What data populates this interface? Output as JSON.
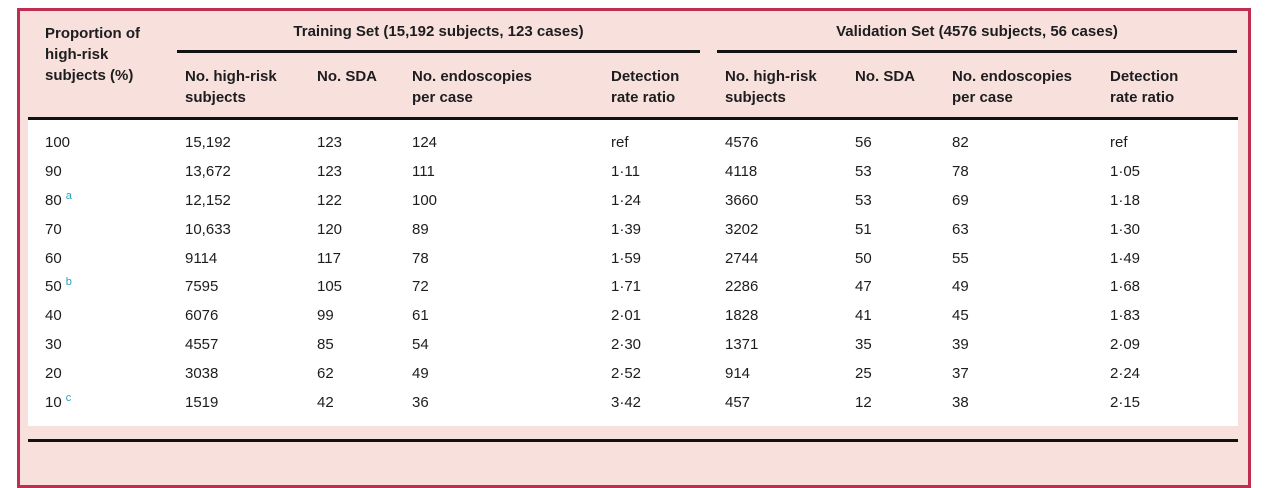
{
  "table": {
    "corner_header": "Proportion of high-risk subjects (%)",
    "groups": [
      {
        "label": "Training Set (15,192 subjects, 123 cases)"
      },
      {
        "label": "Validation Set (4576 subjects, 56 cases)"
      }
    ],
    "sub_headers": [
      {
        "line1": "No. high-risk",
        "line2": "subjects"
      },
      {
        "line1": "No. SDA",
        "line2": ""
      },
      {
        "line1": "No. endoscopies",
        "line2": "per case"
      },
      {
        "line1": "Detection",
        "line2": "rate ratio"
      },
      {
        "line1": "No. high-risk",
        "line2": "subjects"
      },
      {
        "line1": "No. SDA",
        "line2": ""
      },
      {
        "line1": "No. endoscopies",
        "line2": "per case"
      },
      {
        "line1": "Detection",
        "line2": "rate ratio"
      }
    ],
    "rows": [
      {
        "proportion": "100",
        "sup": "",
        "cells": [
          "15,192",
          "123",
          "124",
          "ref",
          "4576",
          "56",
          "82",
          "ref"
        ]
      },
      {
        "proportion": "90",
        "sup": "",
        "cells": [
          "13,672",
          "123",
          "111",
          "1·11",
          "4118",
          "53",
          "78",
          "1·05"
        ]
      },
      {
        "proportion": "80",
        "sup": "a",
        "cells": [
          "12,152",
          "122",
          "100",
          "1·24",
          "3660",
          "53",
          "69",
          "1·18"
        ]
      },
      {
        "proportion": "70",
        "sup": "",
        "cells": [
          "10,633",
          "120",
          "89",
          "1·39",
          "3202",
          "51",
          "63",
          "1·30"
        ]
      },
      {
        "proportion": "60",
        "sup": "",
        "cells": [
          "9114",
          "117",
          "78",
          "1·59",
          "2744",
          "50",
          "55",
          "1·49"
        ]
      },
      {
        "proportion": "50",
        "sup": "b",
        "cells": [
          "7595",
          "105",
          "72",
          "1·71",
          "2286",
          "47",
          "49",
          "1·68"
        ]
      },
      {
        "proportion": "40",
        "sup": "",
        "cells": [
          "6076",
          "99",
          "61",
          "2·01",
          "1828",
          "41",
          "45",
          "1·83"
        ]
      },
      {
        "proportion": "30",
        "sup": "",
        "cells": [
          "4557",
          "85",
          "54",
          "2·30",
          "1371",
          "35",
          "39",
          "2·09"
        ]
      },
      {
        "proportion": "20",
        "sup": "",
        "cells": [
          "3038",
          "62",
          "49",
          "2·52",
          "914",
          "25",
          "37",
          "2·24"
        ]
      },
      {
        "proportion": "10",
        "sup": "c",
        "cells": [
          "1519",
          "42",
          "36",
          "3·42",
          "457",
          "12",
          "38",
          "2·15"
        ]
      }
    ]
  },
  "colors": {
    "border": "#bf2d50",
    "panel_background": "#f8e1dd",
    "footnote_marker": "#2b9fc2",
    "rule": "#121212",
    "text": "#1d1d1f"
  }
}
